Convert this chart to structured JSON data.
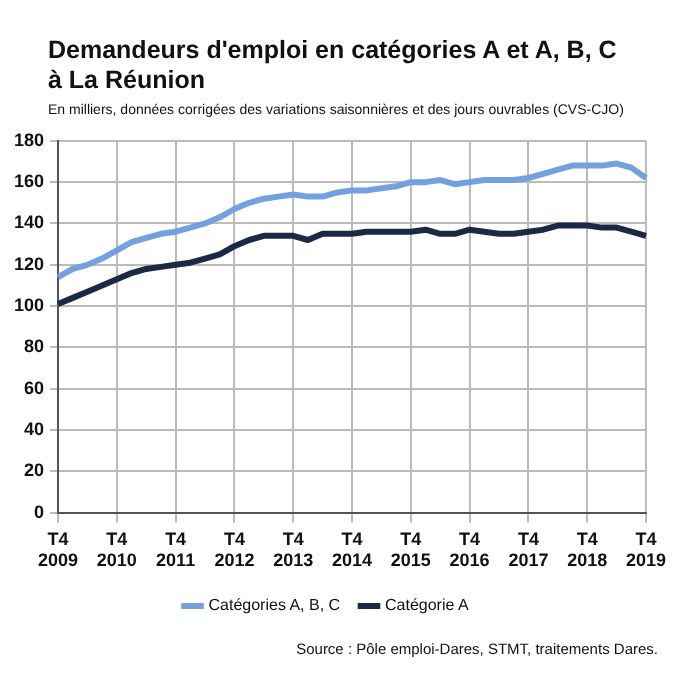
{
  "chart_data": {
    "type": "line",
    "title": "Demandeurs d'emploi en catégories A et A, B, C à La Réunion",
    "subtitle": "En milliers, données corrigées des variations saisonnières et des jours ouvrables (CVS-CJO)",
    "categories": [
      "T4 2009",
      null,
      null,
      null,
      "T4 2010",
      null,
      null,
      null,
      "T4 2011",
      null,
      null,
      null,
      "T4 2012",
      null,
      null,
      null,
      "T4 2013",
      null,
      null,
      null,
      "T4 2014",
      null,
      null,
      null,
      "T4 2015",
      null,
      null,
      null,
      "T4 2016",
      null,
      null,
      null,
      "T4 2017",
      null,
      null,
      null,
      "T4 2018",
      null,
      null,
      null,
      "T4 2019"
    ],
    "series": [
      {
        "name": "Catégories A, B, C",
        "color": "#74a0e0",
        "values": [
          114,
          118,
          120,
          123,
          127,
          131,
          133,
          135,
          136,
          138,
          140,
          143,
          147,
          150,
          152,
          153,
          154,
          153,
          153,
          155,
          156,
          156,
          157,
          158,
          160,
          160,
          161,
          159,
          160,
          161,
          161,
          161,
          162,
          164,
          166,
          168,
          168,
          168,
          169,
          167,
          162
        ]
      },
      {
        "name": "Catégorie A",
        "color": "#1a2a44",
        "values": [
          101,
          104,
          107,
          110,
          113,
          116,
          118,
          119,
          120,
          121,
          123,
          125,
          129,
          132,
          134,
          134,
          134,
          132,
          135,
          135,
          135,
          136,
          136,
          136,
          136,
          137,
          135,
          135,
          137,
          136,
          135,
          135,
          136,
          137,
          139,
          139,
          139,
          138,
          138,
          136,
          134
        ]
      }
    ],
    "ylim": [
      0,
      180
    ],
    "yticks": [
      0,
      20,
      40,
      60,
      80,
      100,
      120,
      140,
      160,
      180
    ],
    "grid": true,
    "legend": "bottom",
    "marker": "none",
    "line_style": "solid",
    "annotations": [
      "Source : Pôle emploi-Dares, STMT, traitements Dares."
    ]
  }
}
